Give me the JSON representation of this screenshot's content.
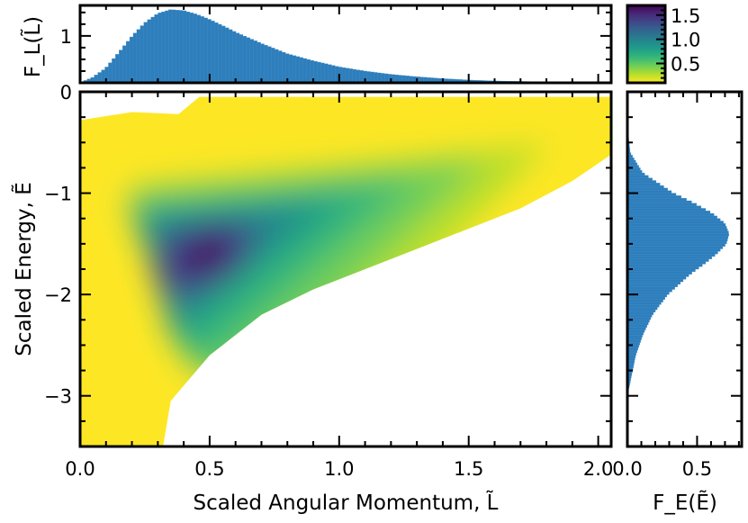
{
  "chart_data": [
    {
      "panel": "joint-density",
      "type": "heatmap",
      "xlabel": "Scaled Angular Momentum, L̃",
      "ylabel": "Scaled Energy, Ẽ",
      "xlim": [
        0,
        2.05
      ],
      "ylim": [
        -3.5,
        0
      ],
      "x_ticks": [
        0,
        0.5,
        1,
        1.5,
        2
      ],
      "x_tick_labels": [
        "0.0",
        "0.5",
        "1.0",
        "1.5",
        "2.0"
      ],
      "y_ticks": [
        0,
        -1,
        -2,
        -3
      ],
      "y_tick_labels": [
        "0",
        "−1",
        "−2",
        "−3"
      ],
      "colormap": "viridis",
      "color_range": [
        0.1,
        1.7
      ],
      "density_peak": {
        "L": 0.48,
        "E": -1.68,
        "value": 1.7
      },
      "support_edge": {
        "L": [
          0.35,
          0.5,
          0.7,
          0.9,
          1.1,
          1.3,
          1.5,
          1.7,
          1.9,
          2.05
        ],
        "E_lower": [
          -3.05,
          -2.6,
          -2.2,
          -1.95,
          -1.75,
          -1.55,
          -1.35,
          -1.15,
          -0.88,
          -0.62
        ]
      }
    },
    {
      "panel": "L-marginal",
      "type": "area",
      "ylabel": "F_L(L̃)",
      "y_ticks": [
        1
      ],
      "y_tick_labels": [
        "1"
      ],
      "ylim": [
        0,
        1.65
      ],
      "x": [
        0.0,
        0.05,
        0.1,
        0.15,
        0.2,
        0.25,
        0.3,
        0.35,
        0.4,
        0.45,
        0.5,
        0.55,
        0.6,
        0.7,
        0.8,
        0.9,
        1.0,
        1.1,
        1.2,
        1.3,
        1.4,
        1.5,
        1.6,
        1.7,
        1.8,
        1.9,
        2.05
      ],
      "y": [
        0.0,
        0.12,
        0.32,
        0.65,
        0.99,
        1.28,
        1.48,
        1.56,
        1.54,
        1.46,
        1.35,
        1.22,
        1.08,
        0.84,
        0.62,
        0.47,
        0.34,
        0.25,
        0.18,
        0.13,
        0.09,
        0.06,
        0.04,
        0.03,
        0.02,
        0.01,
        0.0
      ],
      "color": "#2e7ebc"
    },
    {
      "panel": "E-marginal",
      "type": "area",
      "xlabel": "F_E(Ẽ)",
      "x_ticks": [
        0,
        0.5
      ],
      "x_tick_labels": [
        "0.0",
        "0.5"
      ],
      "xlim": [
        0,
        0.82
      ],
      "E": [
        0.0,
        -0.2,
        -0.4,
        -0.6,
        -0.8,
        -1.0,
        -1.1,
        -1.2,
        -1.3,
        -1.4,
        -1.5,
        -1.6,
        -1.7,
        -1.8,
        -2.0,
        -2.2,
        -2.4,
        -2.6,
        -2.8,
        -3.0
      ],
      "density": [
        0.0,
        0.0,
        0.005,
        0.02,
        0.11,
        0.33,
        0.48,
        0.61,
        0.7,
        0.73,
        0.71,
        0.64,
        0.55,
        0.45,
        0.29,
        0.18,
        0.11,
        0.06,
        0.03,
        0.0
      ],
      "color": "#2e7ebc"
    }
  ],
  "colorbar": {
    "ticks": [
      1.5,
      1.0,
      0.5
    ],
    "tick_labels": [
      "1.5",
      "1.0",
      "0.5"
    ],
    "range": [
      0.1,
      1.7
    ],
    "colormap": "viridis"
  },
  "labels": {
    "x_main": "Scaled Angular Momentum, L̃",
    "y_main": "Scaled Energy, Ẽ",
    "y_top": "F_L(L̃)",
    "x_right": "F_E(Ẽ)"
  },
  "colors": {
    "viridis": [
      "#440154",
      "#482878",
      "#3e4989",
      "#31688e",
      "#26828e",
      "#1f9e89",
      "#35b779",
      "#6ece58",
      "#b5de2b",
      "#fde725"
    ],
    "histogram": "#2e7ebc"
  }
}
